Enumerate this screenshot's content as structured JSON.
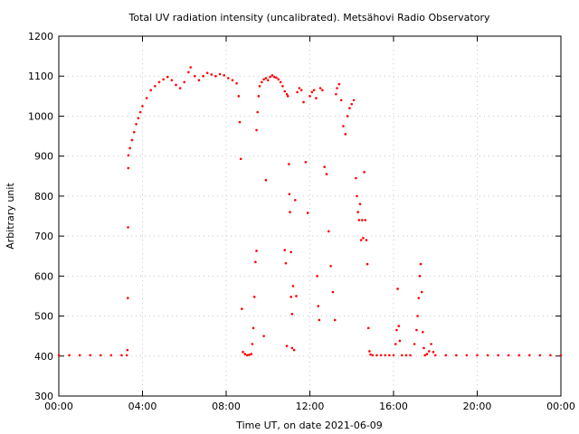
{
  "chart_data": {
    "type": "scatter",
    "title": "Total UV radiation intensity (uncalibrated). Metsähovi Radio Observatory",
    "xlabel": "Time UT, on date 2021-06-09",
    "ylabel": "Arbitrary unit",
    "xlim": [
      0,
      24
    ],
    "ylim": [
      300,
      1200
    ],
    "xticks": [
      0,
      4,
      8,
      12,
      16,
      20,
      24
    ],
    "xtick_labels": [
      "00:00",
      "04:00",
      "08:00",
      "12:00",
      "16:00",
      "20:00",
      "00:00"
    ],
    "yticks": [
      300,
      400,
      500,
      600,
      700,
      800,
      900,
      1000,
      1100,
      1200
    ],
    "ytick_labels": [
      "300",
      "400",
      "500",
      "600",
      "700",
      "800",
      "900",
      "1000",
      "1100",
      "1200"
    ],
    "grid": true,
    "series": [
      {
        "color": "#ff0000",
        "marker": "dot",
        "points": [
          [
            0.0,
            402
          ],
          [
            0.5,
            402
          ],
          [
            1.0,
            402
          ],
          [
            1.5,
            402
          ],
          [
            2.0,
            402
          ],
          [
            2.5,
            402
          ],
          [
            3.0,
            402
          ],
          [
            3.25,
            402
          ],
          [
            3.28,
            415
          ],
          [
            3.3,
            545
          ],
          [
            3.31,
            722
          ],
          [
            3.32,
            870
          ],
          [
            3.33,
            902
          ],
          [
            3.4,
            920
          ],
          [
            3.5,
            940
          ],
          [
            3.6,
            960
          ],
          [
            3.7,
            980
          ],
          [
            3.8,
            995
          ],
          [
            3.9,
            1010
          ],
          [
            4.0,
            1025
          ],
          [
            4.2,
            1045
          ],
          [
            4.4,
            1065
          ],
          [
            4.6,
            1075
          ],
          [
            4.8,
            1085
          ],
          [
            5.0,
            1092
          ],
          [
            5.2,
            1098
          ],
          [
            5.4,
            1090
          ],
          [
            5.6,
            1078
          ],
          [
            5.8,
            1070
          ],
          [
            6.0,
            1085
          ],
          [
            6.2,
            1110
          ],
          [
            6.3,
            1122
          ],
          [
            6.5,
            1100
          ],
          [
            6.7,
            1090
          ],
          [
            6.9,
            1100
          ],
          [
            7.1,
            1108
          ],
          [
            7.3,
            1104
          ],
          [
            7.5,
            1100
          ],
          [
            7.7,
            1105
          ],
          [
            7.9,
            1102
          ],
          [
            8.1,
            1095
          ],
          [
            8.3,
            1090
          ],
          [
            8.5,
            1082
          ],
          [
            8.6,
            1050
          ],
          [
            8.65,
            985
          ],
          [
            8.7,
            893
          ],
          [
            8.75,
            518
          ],
          [
            8.8,
            410
          ],
          [
            8.9,
            405
          ],
          [
            9.0,
            402
          ],
          [
            9.1,
            403
          ],
          [
            9.2,
            405
          ],
          [
            9.25,
            430
          ],
          [
            9.3,
            470
          ],
          [
            9.35,
            548
          ],
          [
            9.4,
            635
          ],
          [
            9.45,
            663
          ],
          [
            9.45,
            965
          ],
          [
            9.5,
            1010
          ],
          [
            9.55,
            1050
          ],
          [
            9.6,
            1075
          ],
          [
            9.7,
            1085
          ],
          [
            9.8,
            1092
          ],
          [
            9.9,
            1095
          ],
          [
            10.0,
            1090
          ],
          [
            10.1,
            1098
          ],
          [
            10.2,
            1102
          ],
          [
            10.3,
            1098
          ],
          [
            10.4,
            1096
          ],
          [
            10.5,
            1092
          ],
          [
            10.6,
            1085
          ],
          [
            10.7,
            1075
          ],
          [
            10.8,
            1062
          ],
          [
            10.9,
            1055
          ],
          [
            10.95,
            1050
          ],
          [
            9.9,
            840
          ],
          [
            9.8,
            450
          ],
          [
            10.8,
            665
          ],
          [
            10.85,
            632
          ],
          [
            10.9,
            425
          ],
          [
            11.0,
            880
          ],
          [
            11.02,
            805
          ],
          [
            11.05,
            760
          ],
          [
            11.1,
            660
          ],
          [
            11.1,
            548
          ],
          [
            11.15,
            505
          ],
          [
            11.15,
            420
          ],
          [
            11.2,
            575
          ],
          [
            11.25,
            415
          ],
          [
            11.3,
            790
          ],
          [
            11.35,
            550
          ],
          [
            11.4,
            1060
          ],
          [
            11.5,
            1070
          ],
          [
            11.6,
            1065
          ],
          [
            11.7,
            1035
          ],
          [
            11.8,
            885
          ],
          [
            11.9,
            758
          ],
          [
            12.0,
            1050
          ],
          [
            12.1,
            1060
          ],
          [
            12.2,
            1065
          ],
          [
            12.3,
            1045
          ],
          [
            12.35,
            600
          ],
          [
            12.4,
            525
          ],
          [
            12.45,
            490
          ],
          [
            12.5,
            1070
          ],
          [
            12.6,
            1065
          ],
          [
            12.7,
            873
          ],
          [
            12.8,
            855
          ],
          [
            12.9,
            712
          ],
          [
            13.0,
            625
          ],
          [
            13.1,
            560
          ],
          [
            13.2,
            490
          ],
          [
            13.25,
            1055
          ],
          [
            13.3,
            1070
          ],
          [
            13.4,
            1080
          ],
          [
            13.5,
            1040
          ],
          [
            13.6,
            975
          ],
          [
            13.7,
            955
          ],
          [
            13.8,
            1000
          ],
          [
            13.9,
            1020
          ],
          [
            14.0,
            1030
          ],
          [
            14.1,
            1040
          ],
          [
            14.2,
            845
          ],
          [
            14.25,
            800
          ],
          [
            14.3,
            760
          ],
          [
            14.35,
            740
          ],
          [
            14.4,
            780
          ],
          [
            14.45,
            690
          ],
          [
            14.5,
            740
          ],
          [
            14.55,
            695
          ],
          [
            14.6,
            860
          ],
          [
            14.65,
            740
          ],
          [
            14.7,
            690
          ],
          [
            14.75,
            630
          ],
          [
            14.8,
            470
          ],
          [
            14.85,
            412
          ],
          [
            14.9,
            404
          ],
          [
            15.0,
            402
          ],
          [
            15.2,
            402
          ],
          [
            15.4,
            402
          ],
          [
            15.6,
            402
          ],
          [
            15.8,
            402
          ],
          [
            16.0,
            402
          ],
          [
            16.1,
            430
          ],
          [
            16.15,
            465
          ],
          [
            16.2,
            568
          ],
          [
            16.25,
            475
          ],
          [
            16.3,
            438
          ],
          [
            16.4,
            402
          ],
          [
            16.6,
            402
          ],
          [
            16.8,
            402
          ],
          [
            17.0,
            430
          ],
          [
            17.1,
            465
          ],
          [
            17.15,
            500
          ],
          [
            17.2,
            545
          ],
          [
            17.25,
            600
          ],
          [
            17.3,
            630
          ],
          [
            17.35,
            560
          ],
          [
            17.4,
            460
          ],
          [
            17.45,
            420
          ],
          [
            17.5,
            402
          ],
          [
            17.6,
            405
          ],
          [
            17.7,
            412
          ],
          [
            17.8,
            430
          ],
          [
            17.9,
            410
          ],
          [
            18.0,
            402
          ],
          [
            18.5,
            402
          ],
          [
            19.0,
            402
          ],
          [
            19.5,
            402
          ],
          [
            20.0,
            402
          ],
          [
            20.5,
            402
          ],
          [
            21.0,
            402
          ],
          [
            21.5,
            402
          ],
          [
            22.0,
            402
          ],
          [
            22.5,
            402
          ],
          [
            23.0,
            402
          ],
          [
            23.5,
            402
          ],
          [
            24.0,
            402
          ]
        ]
      }
    ]
  }
}
